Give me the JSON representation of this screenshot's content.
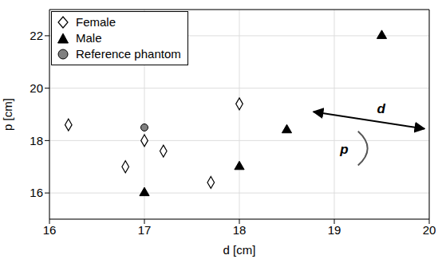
{
  "chart_data": {
    "type": "scatter",
    "x_label": "d [cm]",
    "y_label": "p [cm]",
    "xlim": [
      16,
      20
    ],
    "xticks": [
      16,
      17,
      18,
      19,
      20
    ],
    "ylim": [
      15,
      23
    ],
    "yticks": [
      16,
      18,
      20,
      22
    ],
    "grid": true,
    "legend": "upper left",
    "annotations": [
      "d",
      "p"
    ],
    "series": [
      {
        "name": "Female",
        "color": "#000000",
        "marker": "open_diamond",
        "x": [
          16.2,
          16.8,
          17.0,
          17.2,
          17.7,
          18.0
        ],
        "y": [
          18.6,
          17.0,
          18.0,
          17.6,
          16.4,
          19.4
        ]
      },
      {
        "name": "Male",
        "color": "#000000",
        "marker": "triangle",
        "x": [
          17.0,
          18.0,
          18.5,
          19.5
        ],
        "y": [
          16.0,
          17.0,
          18.4,
          22.0
        ]
      },
      {
        "name": "Reference phantom",
        "color": "#808080",
        "marker": "circle",
        "x": [
          17.0
        ],
        "y": [
          18.5
        ]
      }
    ]
  }
}
